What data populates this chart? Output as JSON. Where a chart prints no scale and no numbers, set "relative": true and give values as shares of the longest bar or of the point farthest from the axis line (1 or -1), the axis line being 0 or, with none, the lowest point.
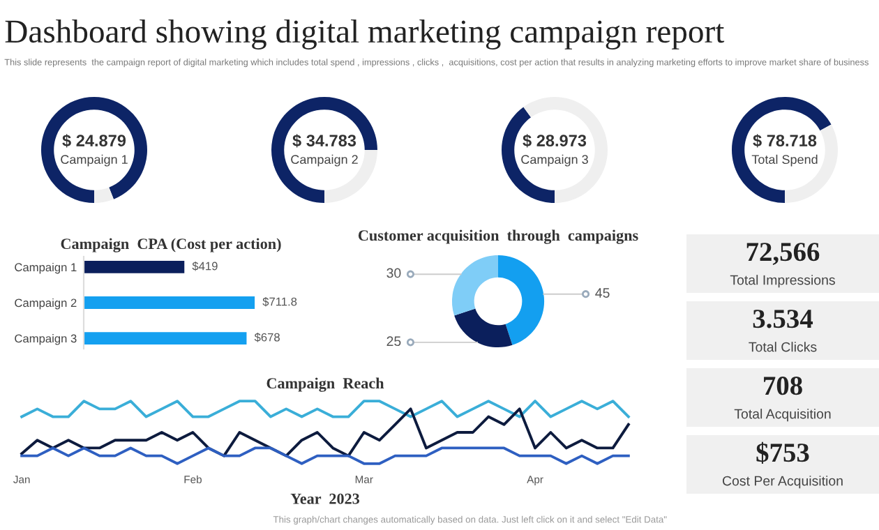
{
  "chart_data": [
    {
      "type": "other",
      "title": "Dashboard showing digital marketing campaign report",
      "subtitle": "This slide represents  the campaign report of digital marketing which includes total spend , impressions , clicks ,  acquisitions, cost per action that results in analyzing marketing efforts to improve market share of business"
    },
    {
      "type": "donut",
      "categories": [
        null,
        null
      ],
      "values": [
        94,
        6
      ],
      "colors": [
        "#0d2466",
        "#efefef"
      ],
      "annotations": [
        "$ 24.879",
        "Campaign 1"
      ]
    },
    {
      "type": "donut",
      "categories": [
        null,
        null
      ],
      "values": [
        75,
        25
      ],
      "colors": [
        "#0d2466",
        "#efefef"
      ],
      "annotations": [
        "$ 34.783",
        "Campaign 2"
      ]
    },
    {
      "type": "donut",
      "categories": [
        null,
        null
      ],
      "values": [
        40,
        60
      ],
      "colors": [
        "#0d2466",
        "#efefef"
      ],
      "annotations": [
        "$ 28.973",
        "Campaign 3"
      ]
    },
    {
      "type": "donut",
      "categories": [
        null,
        null
      ],
      "values": [
        67,
        33
      ],
      "colors": [
        "#0d2466",
        "#efefef"
      ],
      "annotations": [
        "$ 78.718",
        "Total Spend"
      ]
    },
    {
      "type": "bar",
      "orientation": "horizontal",
      "title": "Campaign  CPA (Cost per action)",
      "categories": [
        "Campaign 1",
        "Campaign 2",
        "Campaign 3"
      ],
      "values": [
        419,
        711.8,
        678
      ],
      "colors": [
        "#0b1f5c",
        "#14a0f0",
        "#14a0f0"
      ],
      "value_labels": [
        "$419",
        "$711.8",
        "$678"
      ]
    },
    {
      "type": "donut",
      "title": "Customer acquisition  through  campaigns",
      "categories": [
        null,
        null,
        null
      ],
      "values": [
        45,
        25,
        30
      ],
      "colors": [
        "#139ff0",
        "#0b1f5c",
        "#7fcdf7"
      ],
      "data_labels": true
    },
    {
      "type": "line",
      "title": "Campaign  Reach",
      "xlabel": "Year  2023",
      "relative": true,
      "categories": [
        "Jan",
        null,
        null,
        null,
        null,
        null,
        null,
        null,
        null,
        null,
        null,
        "Feb",
        null,
        null,
        null,
        null,
        null,
        null,
        null,
        null,
        null,
        null,
        "Mar",
        null,
        null,
        null,
        null,
        null,
        null,
        null,
        null,
        null,
        null,
        "Apr",
        null,
        null,
        null,
        null,
        null,
        null
      ],
      "series": [
        {
          "color": "#3aaed8",
          "values": [
            0.75,
            0.875,
            0.75,
            0.75,
            1,
            0.875,
            0.875,
            1,
            0.75,
            0.875,
            1,
            0.75,
            0.75,
            0.875,
            1,
            1,
            0.75,
            0.875,
            0.75,
            0.875,
            0.75,
            0.75,
            1,
            1,
            0.875,
            0.75,
            0.875,
            1,
            0.75,
            0.875,
            1,
            0.875,
            0.75,
            1,
            0.75,
            0.875,
            1,
            0.875,
            1,
            0.75
          ]
        },
        {
          "color": "#0d1b3e",
          "values": [
            0.16,
            0.375,
            0.25,
            0.375,
            0.25,
            0.25,
            0.375,
            0.375,
            0.375,
            0.5,
            0.375,
            0.5,
            0.25,
            0.125,
            0.5,
            0.375,
            0.25,
            0.125,
            0.375,
            0.5,
            0.25,
            0.125,
            0.5,
            0.375,
            0.625,
            0.875,
            0.25,
            0.375,
            0.5,
            0.5,
            0.75,
            0.625,
            0.875,
            0.25,
            0.5,
            0.25,
            0.375,
            0.25,
            0.25,
            0.625
          ]
        },
        {
          "color": "#2e5fc1",
          "values": [
            0.125,
            0.125,
            0.25,
            0.125,
            0.25,
            0.125,
            0.125,
            0.25,
            0.125,
            0.125,
            0,
            0.125,
            0.25,
            0.125,
            0.125,
            0.25,
            0.25,
            0.125,
            0,
            0.125,
            0.125,
            0.125,
            0,
            0,
            0.125,
            0.125,
            0.125,
            0.25,
            0.25,
            0.25,
            0.25,
            0.25,
            0.125,
            0.125,
            0.125,
            0,
            0.125,
            0,
            0.125,
            0.125
          ]
        }
      ],
      "annotations": [
        "This graph/chart changes automatically based on data. Just left click on it and select \"Edit Data\""
      ]
    },
    {
      "type": "other",
      "annotations": [
        "72,566",
        "Total Impressions"
      ]
    },
    {
      "type": "other",
      "annotations": [
        "3.534",
        "Total Clicks"
      ]
    },
    {
      "type": "other",
      "annotations": [
        "708",
        "Total Acquisition"
      ]
    },
    {
      "type": "other",
      "annotations": [
        "$753",
        "Cost Per Acquisition"
      ]
    }
  ]
}
